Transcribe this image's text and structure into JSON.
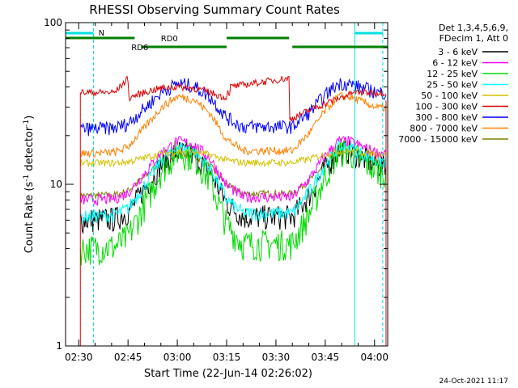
{
  "chart_data": {
    "type": "line",
    "title": "RHESSI Observing Summary Count Rates",
    "xlabel": "Start Time (22-Jun-14 02:26:02)",
    "ylabel_main": "Count Rate (s",
    "ylabel_sup": "-1",
    "ylabel_mid": " detector",
    "ylabel_sup2": "-1",
    "ylabel_end": ")",
    "y_scale": "log",
    "ylim": [
      1,
      100
    ],
    "xlim_minutes": [
      26.0,
      124.0
    ],
    "x_ticks": [
      {
        "t": 30,
        "label": "02:30"
      },
      {
        "t": 45,
        "label": "02:45"
      },
      {
        "t": 60,
        "label": "03:00"
      },
      {
        "t": 75,
        "label": "03:15"
      },
      {
        "t": 90,
        "label": "03:30"
      },
      {
        "t": 105,
        "label": "03:45"
      },
      {
        "t": 120,
        "label": "04:00"
      }
    ],
    "y_ticks": [
      {
        "v": 1,
        "label": "1"
      },
      {
        "v": 10,
        "label": "10"
      },
      {
        "v": 100,
        "label": "100"
      }
    ],
    "legend_placement": "right",
    "legend_header": [
      "Det 1,3,4,5,6,9,",
      "FDecim 1, Att 0"
    ],
    "annotations": {
      "N_label": "N",
      "RD0_label": "RD0",
      "RD6_label": "RD6",
      "timestamp": "24-Oct-2021 11:17"
    },
    "series": [
      {
        "name": "3 - 6 keV",
        "color": "#000000"
      },
      {
        "name": "6 - 12 keV",
        "color": "#ff00ff"
      },
      {
        "name": "12 - 25 keV",
        "color": "#00dd00"
      },
      {
        "name": "25 - 50 keV",
        "color": "#00ffff"
      },
      {
        "name": "50 - 100 keV",
        "color": "#d4c000"
      },
      {
        "name": "100 - 300 keV",
        "color": "#e00000"
      },
      {
        "name": "300 - 800 keV",
        "color": "#0000ff"
      },
      {
        "name": "800 - 7000 keV",
        "color": "#ff8000"
      },
      {
        "name": "7000 - 15000 keV",
        "color": "#808000"
      }
    ]
  }
}
